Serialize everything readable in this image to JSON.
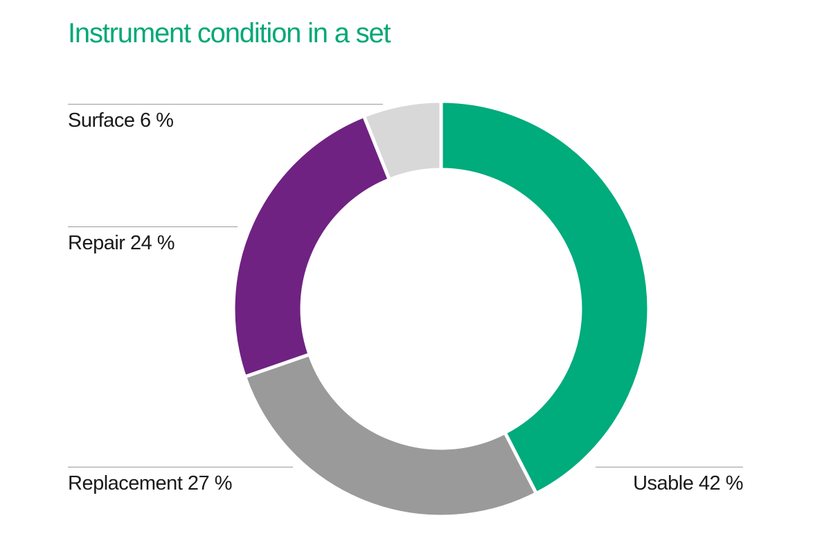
{
  "chart_data": {
    "type": "pie",
    "subtype": "donut",
    "title": "Instrument condition in a set",
    "start_angle_deg": 0,
    "direction": "clockwise",
    "inner_radius_ratio": 0.67,
    "legend_position": "callout-lines",
    "slices": [
      {
        "label": "Usable",
        "value": 42,
        "display": "Usable 42 %",
        "color": "#00AB7C"
      },
      {
        "label": "Replacement",
        "value": 27,
        "display": "Replacement 27 %",
        "color": "#9A9A9A"
      },
      {
        "label": "Repair",
        "value": 24,
        "display": "Repair 24 %",
        "color": "#6F2282"
      },
      {
        "label": "Surface",
        "value": 6,
        "display": "Surface 6 %",
        "color": "#D8D8D8"
      }
    ]
  },
  "colors": {
    "title": "#00A876",
    "label_text": "#1A1A1A",
    "leader_line": "#999999",
    "segment_gap": "#FFFFFF",
    "background": "#FFFFFF"
  }
}
